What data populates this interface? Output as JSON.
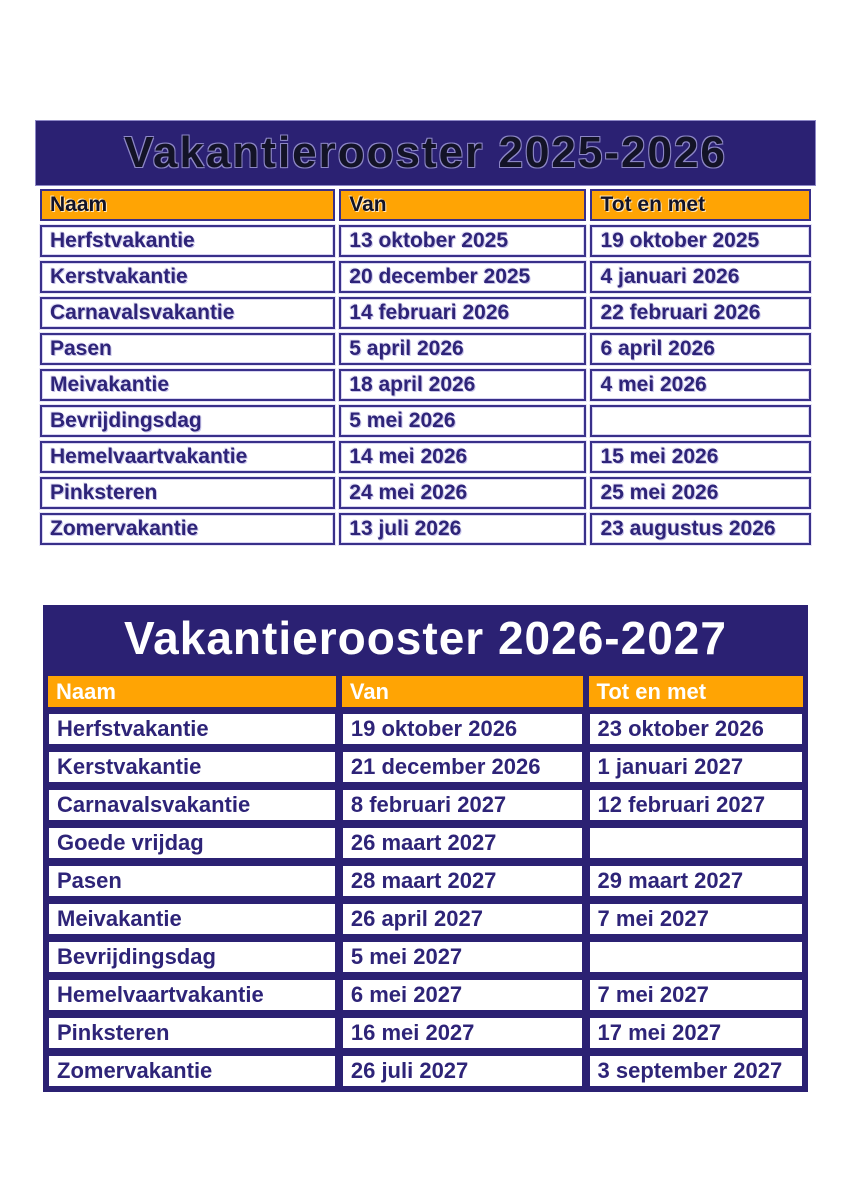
{
  "colors": {
    "navy": "#2b2173",
    "orange": "#ffa404",
    "text_navy": "#2e2478",
    "white": "#ffffff"
  },
  "tables": [
    {
      "title": "Vakantierooster 2025-2026",
      "style": "outline",
      "columns": [
        "Naam",
        "Van",
        "Tot en met"
      ],
      "rows": [
        [
          "Herfstvakantie",
          "13 oktober 2025",
          "19 oktober 2025"
        ],
        [
          "Kerstvakantie",
          "20 december 2025",
          "4 januari 2026"
        ],
        [
          "Carnavalsvakantie",
          "14 februari 2026",
          "22 februari 2026"
        ],
        [
          "Pasen",
          "5 april 2026",
          "6 april 2026"
        ],
        [
          "Meivakantie",
          "18 april 2026",
          "4 mei 2026"
        ],
        [
          "Bevrijdingsdag",
          "5 mei 2026",
          ""
        ],
        [
          "Hemelvaartvakantie",
          "14 mei 2026",
          "15 mei 2026"
        ],
        [
          "Pinksteren",
          "24 mei 2026",
          "25 mei 2026"
        ],
        [
          "Zomervakantie",
          "13 juli 2026",
          "23 augustus 2026"
        ]
      ]
    },
    {
      "title": "Vakantierooster 2026-2027",
      "style": "solid",
      "columns": [
        "Naam",
        "Van",
        "Tot en met"
      ],
      "rows": [
        [
          "Herfstvakantie",
          "19 oktober 2026",
          "23 oktober 2026"
        ],
        [
          "Kerstvakantie",
          "21 december 2026",
          "1 januari 2027"
        ],
        [
          "Carnavalsvakantie",
          "8 februari 2027",
          "12 februari 2027"
        ],
        [
          "Goede vrijdag",
          "26 maart 2027",
          ""
        ],
        [
          "Pasen",
          "28 maart 2027",
          "29 maart 2027"
        ],
        [
          "Meivakantie",
          "26 april 2027",
          "7 mei 2027"
        ],
        [
          "Bevrijdingsdag",
          "5 mei 2027",
          ""
        ],
        [
          "Hemelvaartvakantie",
          "6 mei 2027",
          "7 mei 2027"
        ],
        [
          "Pinksteren",
          "16 mei 2027",
          "17 mei 2027"
        ],
        [
          "Zomervakantie",
          "26 juli 2027",
          "3 september 2027"
        ]
      ]
    }
  ]
}
